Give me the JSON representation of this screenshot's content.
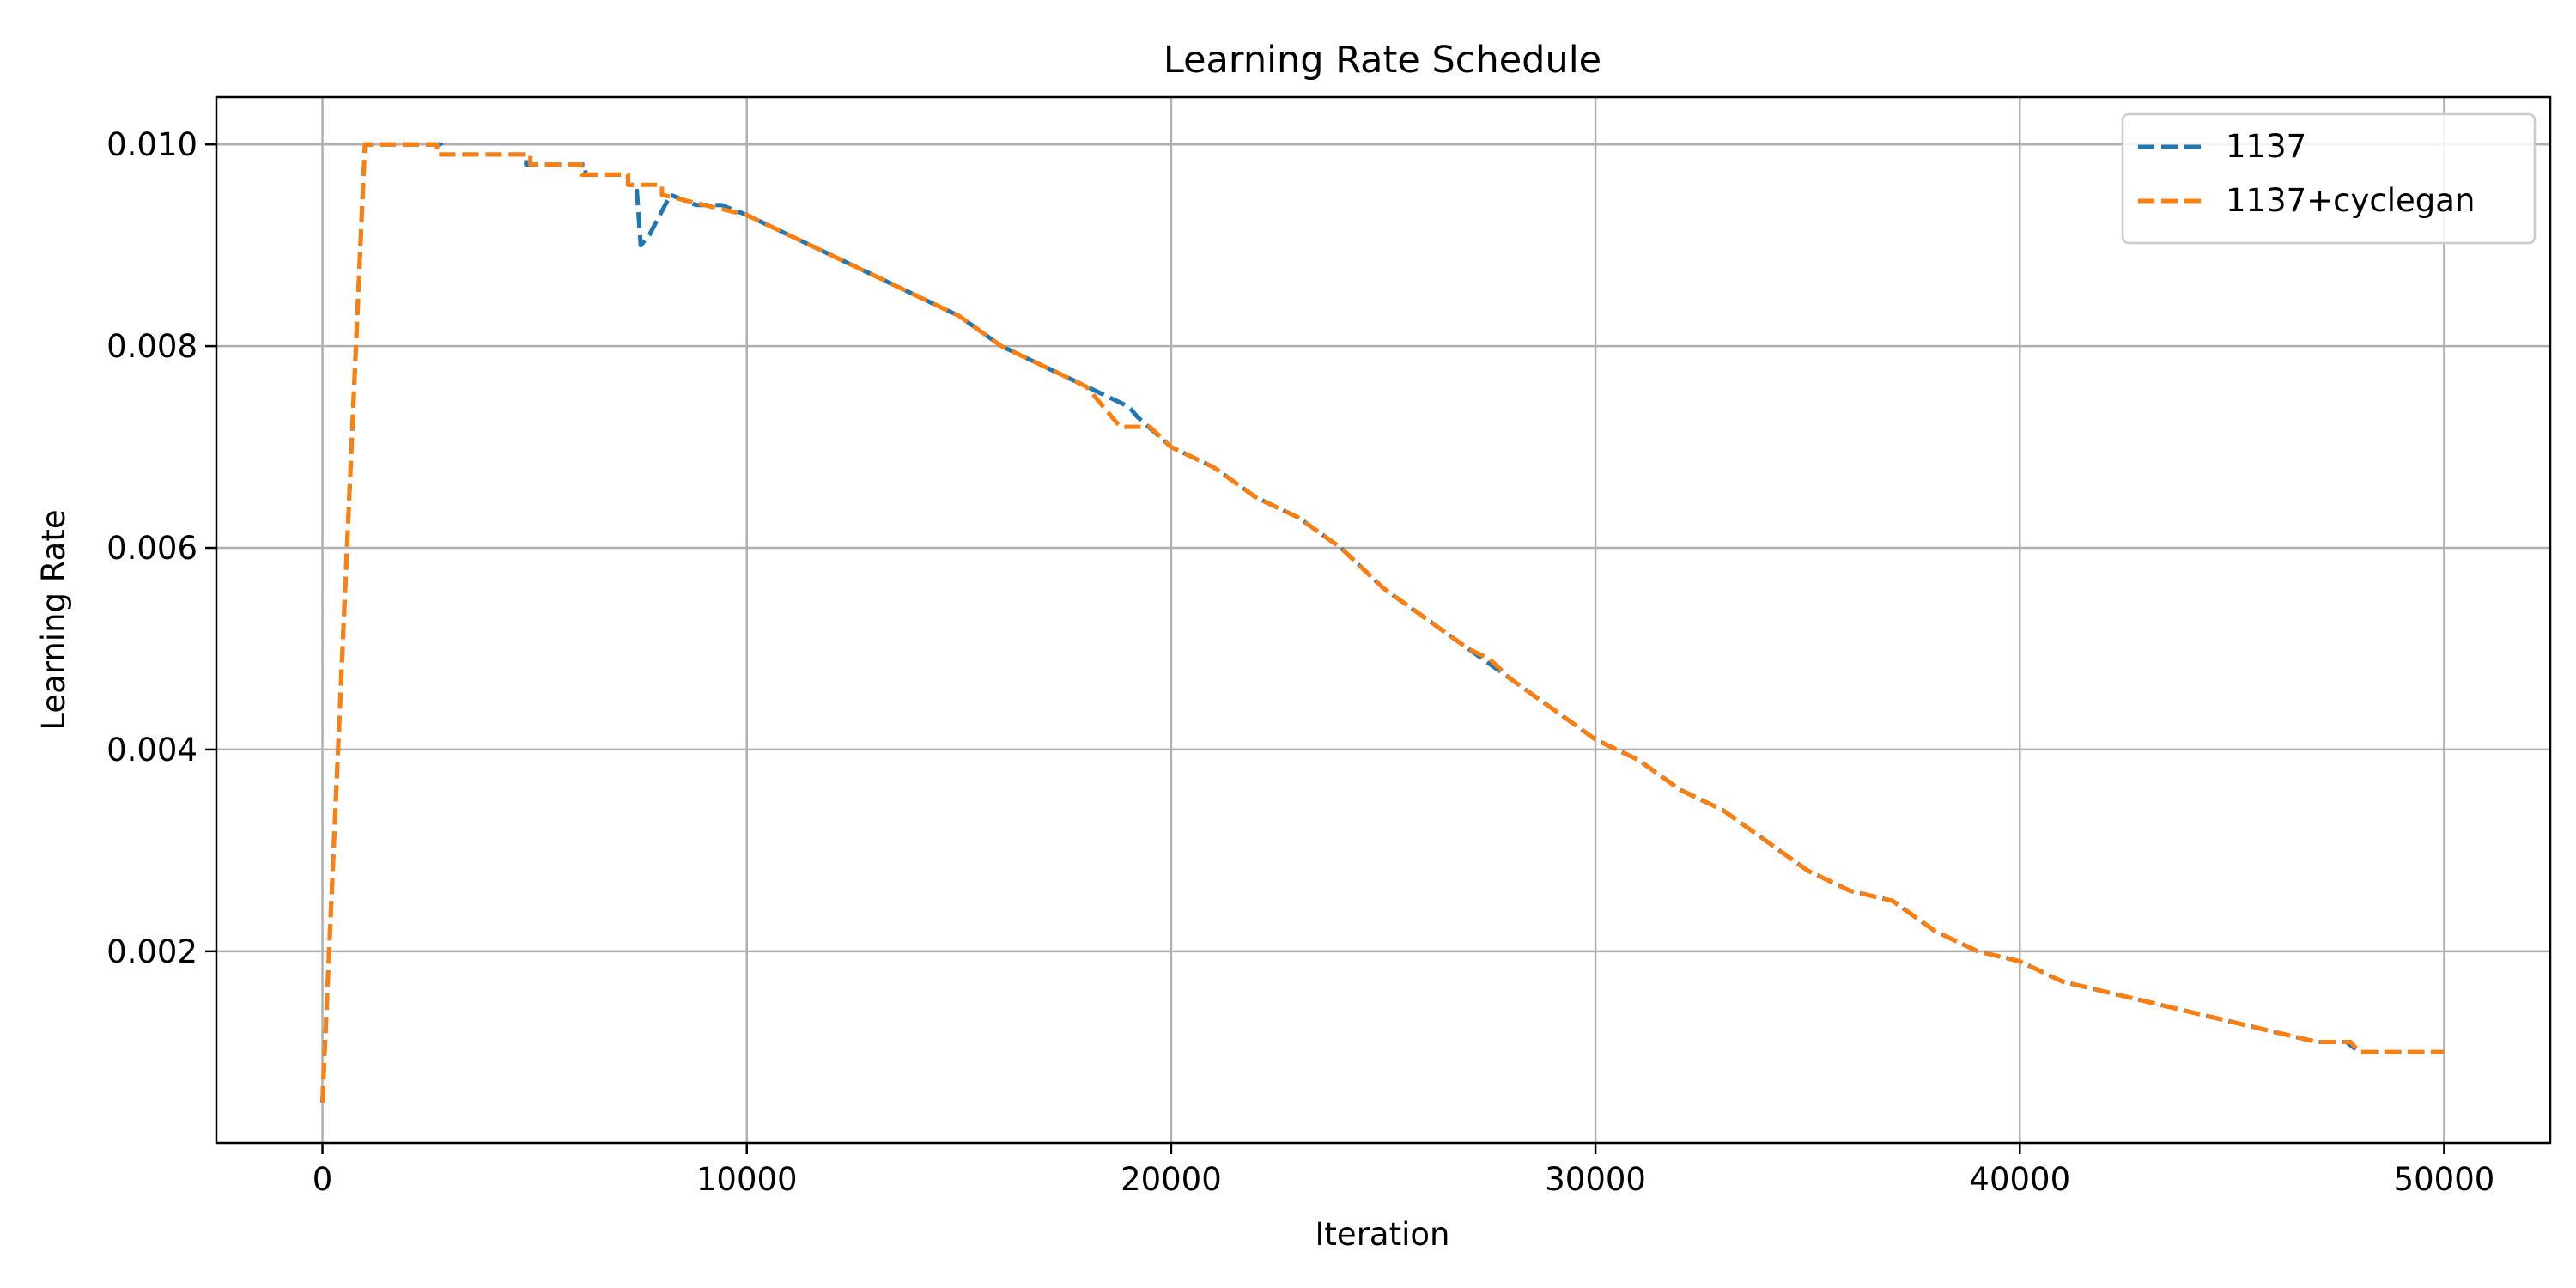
{
  "chart_data": {
    "type": "line",
    "title": "Learning Rate Schedule",
    "xlabel": "Iteration",
    "ylabel": "Learning Rate",
    "xlim": [
      -2500,
      52500
    ],
    "ylim": [
      0.0001,
      0.01047
    ],
    "xticks": [
      0,
      10000,
      20000,
      30000,
      40000,
      50000
    ],
    "xtick_labels": [
      "0",
      "10000",
      "20000",
      "30000",
      "40000",
      "50000"
    ],
    "yticks": [
      0.002,
      0.004,
      0.006,
      0.008,
      0.01
    ],
    "ytick_labels": [
      "0.002",
      "0.004",
      "0.006",
      "0.008",
      "0.010"
    ],
    "grid": true,
    "legend_position": "top-right",
    "series": [
      {
        "name": "1137",
        "color": "#1f77b4",
        "x": [
          0,
          1000,
          2800,
          2800,
          4800,
          4800,
          6200,
          6200,
          7200,
          7200,
          7400,
          7500,
          7700,
          8200,
          8800,
          9400,
          10000,
          11000,
          12000,
          13000,
          14000,
          15000,
          16000,
          17000,
          18000,
          19000,
          19200,
          20000,
          21000,
          22000,
          23000,
          24000,
          25000,
          26000,
          27000,
          28000,
          29000,
          30000,
          31000,
          32000,
          33000,
          34000,
          35000,
          36000,
          37000,
          38000,
          39000,
          40000,
          40500,
          41000,
          42000,
          43000,
          44000,
          45000,
          46000,
          47000,
          47700,
          48000,
          49000,
          50000
        ],
        "y": [
          0.0005,
          0.01,
          0.01,
          0.0099,
          0.0099,
          0.0098,
          0.0098,
          0.0097,
          0.0097,
          0.0096,
          0.0096,
          0.009,
          0.0091,
          0.0095,
          0.0094,
          0.0094,
          0.0093,
          0.0091,
          0.0089,
          0.0087,
          0.0085,
          0.0083,
          0.008,
          0.0078,
          0.0076,
          0.0074,
          0.0073,
          0.007,
          0.0068,
          0.0065,
          0.0063,
          0.006,
          0.0056,
          0.0053,
          0.005,
          0.0047,
          0.0044,
          0.0041,
          0.0039,
          0.0036,
          0.0034,
          0.0031,
          0.0028,
          0.0026,
          0.0025,
          0.0022,
          0.002,
          0.0019,
          0.0018,
          0.0017,
          0.0016,
          0.0015,
          0.0014,
          0.0013,
          0.0012,
          0.0011,
          0.0011,
          0.001,
          0.001,
          0.001
        ]
      },
      {
        "name": "1137+cyclegan",
        "color": "#ff7f0e",
        "x": [
          0,
          1000,
          2700,
          2700,
          4900,
          4900,
          6100,
          6100,
          7200,
          7200,
          8000,
          8000,
          9000,
          10000,
          11000,
          12000,
          13000,
          14000,
          15000,
          16000,
          17000,
          18000,
          18800,
          19500,
          20000,
          21000,
          22000,
          23000,
          24000,
          25000,
          26000,
          27000,
          27500,
          28000,
          29000,
          30000,
          31000,
          32000,
          33000,
          34000,
          35000,
          36000,
          37000,
          38000,
          39000,
          40000,
          40500,
          41000,
          42000,
          43000,
          44000,
          45000,
          46000,
          47000,
          47800,
          48000,
          49000,
          50000
        ],
        "y": [
          0.0005,
          0.01,
          0.01,
          0.0099,
          0.0099,
          0.0098,
          0.0098,
          0.0097,
          0.0097,
          0.0096,
          0.0096,
          0.0095,
          0.0094,
          0.0093,
          0.0091,
          0.0089,
          0.0087,
          0.0085,
          0.0083,
          0.008,
          0.0078,
          0.0076,
          0.0072,
          0.0072,
          0.007,
          0.0068,
          0.0065,
          0.0063,
          0.006,
          0.0056,
          0.0053,
          0.005,
          0.0049,
          0.0047,
          0.0044,
          0.0041,
          0.0039,
          0.0036,
          0.0034,
          0.0031,
          0.0028,
          0.0026,
          0.0025,
          0.0022,
          0.002,
          0.0019,
          0.0018,
          0.0017,
          0.0016,
          0.0015,
          0.0014,
          0.0013,
          0.0012,
          0.0011,
          0.0011,
          0.001,
          0.001,
          0.001
        ]
      }
    ]
  }
}
